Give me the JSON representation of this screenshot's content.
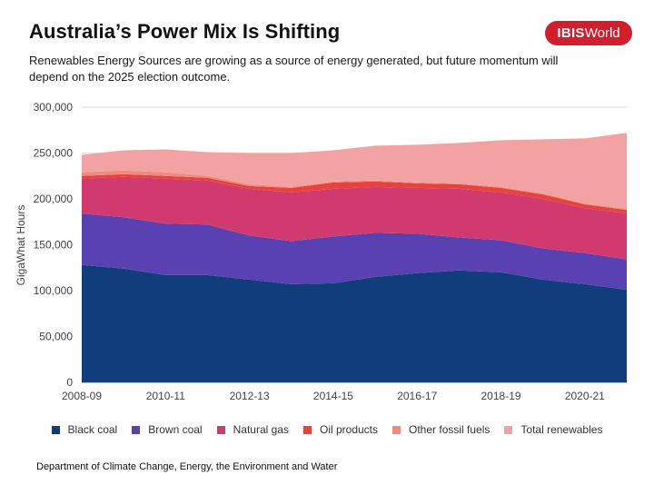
{
  "header": {
    "title": "Australia’s Power Mix Is Shifting",
    "subtitle": "Renewables Energy Sources are growing as a source of energy generated, but future momentum will depend on the 2025 election outcome.",
    "logo": {
      "bold": "IBIS",
      "regular": "World",
      "color": "#d0202e"
    }
  },
  "source": "Department of Climate Change, Energy, the Environment and Water",
  "chart_data": {
    "type": "area",
    "stacked": true,
    "ylabel": "GigaWhat Hours",
    "xlabel": "",
    "ylim": [
      0,
      300000
    ],
    "yticks": [
      0,
      50000,
      100000,
      150000,
      200000,
      250000,
      300000
    ],
    "ytick_labels": [
      "0",
      "50,000",
      "100,000",
      "150,000",
      "200,000",
      "250,000",
      "300,000"
    ],
    "x": [
      "2008-09",
      "2009-10",
      "2010-11",
      "2011-12",
      "2012-13",
      "2013-14",
      "2014-15",
      "2015-16",
      "2016-17",
      "2017-18",
      "2018-19",
      "2019-20",
      "2020-21",
      "2021-22"
    ],
    "xtick_labels": [
      "2008-09",
      "2010-11",
      "2012-13",
      "2014-15",
      "2016-17",
      "2018-19",
      "2020-21"
    ],
    "xtick_indices": [
      0,
      2,
      4,
      6,
      8,
      10,
      12
    ],
    "grid": true,
    "legend_position": "bottom",
    "series": [
      {
        "name": "Black coal",
        "color": "#123d7d",
        "values": [
          128000,
          124000,
          117000,
          117000,
          112000,
          107000,
          108000,
          115000,
          119000,
          122000,
          120000,
          112000,
          107000,
          101000
        ]
      },
      {
        "name": "Brown coal",
        "color": "#5a41b2",
        "values": [
          56000,
          56000,
          56000,
          55000,
          48000,
          47000,
          51000,
          48000,
          43000,
          36000,
          35000,
          34000,
          34000,
          33000
        ]
      },
      {
        "name": "Natural gas",
        "color": "#d03a6e",
        "values": [
          38000,
          44000,
          49000,
          48000,
          51000,
          53000,
          52000,
          50000,
          50000,
          53000,
          52000,
          54000,
          49000,
          50000
        ]
      },
      {
        "name": "Oil products",
        "color": "#e8423c",
        "values": [
          3000,
          3000,
          3000,
          3000,
          3000,
          5000,
          7000,
          6000,
          5000,
          5000,
          5000,
          5000,
          4000,
          4000
        ]
      },
      {
        "name": "Other fossil fuels",
        "color": "#ee8a7f",
        "values": [
          4000,
          4000,
          4000,
          2000,
          2000,
          1000,
          1000,
          1000,
          1000,
          1000,
          1000,
          1000,
          1000,
          1000
        ]
      },
      {
        "name": "Total renewables",
        "color": "#f2a2a2",
        "values": [
          19000,
          22000,
          25000,
          26000,
          34000,
          37000,
          34000,
          38000,
          41000,
          44000,
          51000,
          59000,
          71000,
          83000
        ]
      }
    ]
  }
}
